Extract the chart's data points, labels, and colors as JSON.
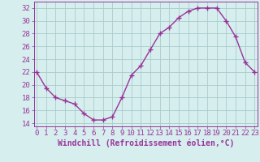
{
  "x": [
    0,
    1,
    2,
    3,
    4,
    5,
    6,
    7,
    8,
    9,
    10,
    11,
    12,
    13,
    14,
    15,
    16,
    17,
    18,
    19,
    20,
    21,
    22,
    23
  ],
  "y": [
    22,
    19.5,
    18,
    17.5,
    17,
    15.5,
    14.5,
    14.5,
    15,
    18,
    21.5,
    23,
    25.5,
    28,
    29,
    30.5,
    31.5,
    32,
    32,
    32,
    30,
    27.5,
    23.5,
    22
  ],
  "line_color": "#993399",
  "marker": "+",
  "markersize": 4,
  "linewidth": 1.0,
  "bg_color": "#d6eeee",
  "grid_color": "#aacccc",
  "xlabel": "Windchill (Refroidissement éolien,°C)",
  "xlabel_fontsize": 7,
  "tick_fontsize": 6.5,
  "ylim": [
    13.5,
    33
  ],
  "yticks": [
    14,
    16,
    18,
    20,
    22,
    24,
    26,
    28,
    30,
    32
  ],
  "xticks": [
    0,
    1,
    2,
    3,
    4,
    5,
    6,
    7,
    8,
    9,
    10,
    11,
    12,
    13,
    14,
    15,
    16,
    17,
    18,
    19,
    20,
    21,
    22,
    23
  ],
  "xlim": [
    -0.3,
    23.3
  ],
  "label_color": "#993399"
}
